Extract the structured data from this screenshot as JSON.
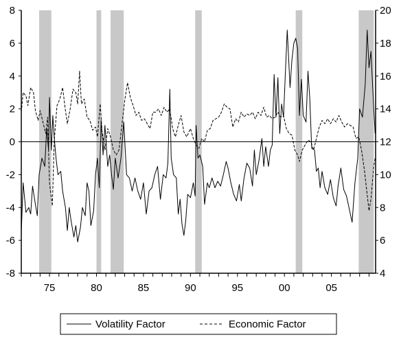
{
  "chart_data": {
    "type": "line",
    "title": "",
    "xlabel": "",
    "ylabel_left": "",
    "ylabel_right": "",
    "xlim": [
      1972,
      2009.7
    ],
    "ylim_left": [
      -8,
      8
    ],
    "ylim_right": [
      4,
      20
    ],
    "grid": false,
    "legend_placement": "bottom-center",
    "x_ticks": [
      {
        "value": 1975,
        "label": "75"
      },
      {
        "value": 1980,
        "label": "80"
      },
      {
        "value": 1985,
        "label": "85"
      },
      {
        "value": 1990,
        "label": "90"
      },
      {
        "value": 1995,
        "label": "95"
      },
      {
        "value": 2000,
        "label": "00"
      },
      {
        "value": 2005,
        "label": "05"
      }
    ],
    "y_ticks_left": [
      "8",
      "6",
      "4",
      "2",
      "0",
      "-2",
      "-4",
      "-6",
      "-8"
    ],
    "y_ticks_right": [
      "20",
      "18",
      "16",
      "14",
      "12",
      "10",
      "8",
      "6",
      "4"
    ],
    "recessions": [
      [
        1973.9,
        1975.2
      ],
      [
        1980.0,
        1980.5
      ],
      [
        1981.5,
        1982.9
      ],
      [
        1990.5,
        1991.2
      ],
      [
        2001.2,
        2001.9
      ],
      [
        2007.9,
        2009.5
      ]
    ],
    "zero_line_left": 0,
    "series": [
      {
        "name": "Volatility Factor",
        "axis": "left",
        "style": "solid",
        "x": [
          1972.0,
          1972.2,
          1972.5,
          1972.8,
          1973.0,
          1973.2,
          1973.5,
          1973.7,
          1973.9,
          1974.2,
          1974.5,
          1974.7,
          1974.9,
          1975.0,
          1975.2,
          1975.35,
          1975.5,
          1975.7,
          1975.9,
          1976.2,
          1976.4,
          1976.7,
          1976.9,
          1977.1,
          1977.3,
          1977.6,
          1977.8,
          1978.0,
          1978.3,
          1978.5,
          1978.8,
          1979.0,
          1979.2,
          1979.4,
          1979.7,
          1979.9,
          1980.1,
          1980.3,
          1980.5,
          1980.7,
          1980.9,
          1981.2,
          1981.4,
          1981.6,
          1981.8,
          1982.0,
          1982.3,
          1982.6,
          1982.9,
          1983.2,
          1983.5,
          1983.8,
          1984.1,
          1984.4,
          1984.7,
          1985.0,
          1985.3,
          1985.6,
          1985.9,
          1986.2,
          1986.5,
          1986.8,
          1987.1,
          1987.4,
          1987.6,
          1987.8,
          1987.95,
          1988.2,
          1988.5,
          1988.7,
          1988.9,
          1989.1,
          1989.3,
          1989.5,
          1989.7,
          1990.0,
          1990.3,
          1990.5,
          1990.6,
          1990.8,
          1991.0,
          1991.3,
          1991.5,
          1991.8,
          1992.0,
          1992.3,
          1992.6,
          1992.9,
          1993.2,
          1993.5,
          1993.8,
          1994.0,
          1994.3,
          1994.6,
          1994.9,
          1995.2,
          1995.4,
          1995.7,
          1996.0,
          1996.3,
          1996.6,
          1996.8,
          1997.0,
          1997.3,
          1997.6,
          1997.8,
          1998.0,
          1998.3,
          1998.5,
          1998.7,
          1998.9,
          1999.1,
          1999.3,
          1999.5,
          1999.7,
          1999.9,
          2000.1,
          2000.3,
          2000.6,
          2000.8,
          2001.0,
          2001.2,
          2001.4,
          2001.6,
          2001.8,
          2002.0,
          2002.3,
          2002.5,
          2002.7,
          2002.9,
          2003.2,
          2003.4,
          2003.6,
          2003.8,
          2004.0,
          2004.3,
          2004.6,
          2004.9,
          2005.2,
          2005.5,
          2005.7,
          2006.0,
          2006.3,
          2006.6,
          2006.9,
          2007.2,
          2007.5,
          2007.8,
          2008.0,
          2008.3,
          2008.6,
          2008.8,
          2009.0,
          2009.2,
          2009.5,
          2009.65
        ],
        "y": [
          -5.5,
          -2.5,
          -4.3,
          -4.0,
          -4.4,
          -2.7,
          -3.8,
          -4.5,
          -2.0,
          -1.0,
          -1.5,
          0.8,
          -0.5,
          2.7,
          -0.5,
          1.6,
          0.3,
          -1.0,
          -2.0,
          -1.8,
          -3.0,
          -4.0,
          -5.4,
          -4.0,
          -4.8,
          -5.8,
          -5.1,
          -6.1,
          -5.2,
          -4.0,
          -4.5,
          -2.5,
          -3.0,
          -5.1,
          -4.2,
          -2.0,
          -1.0,
          -2.8,
          1.3,
          -0.8,
          1.0,
          -1.5,
          -0.8,
          -2.0,
          -2.9,
          -1.0,
          -2.2,
          -1.0,
          1.2,
          -2.0,
          -2.2,
          -3.0,
          -2.2,
          -3.0,
          -3.5,
          -2.5,
          -4.4,
          -3.0,
          -2.8,
          -2.0,
          -1.5,
          -3.5,
          -2.0,
          -2.2,
          -1.3,
          3.2,
          -1.0,
          -2.0,
          -2.2,
          -4.4,
          -3.5,
          -5.0,
          -5.7,
          -4.8,
          -3.2,
          -3.4,
          -2.5,
          -3.3,
          1.0,
          -1.0,
          -0.8,
          -1.5,
          -3.8,
          -2.5,
          -2.8,
          -2.2,
          -2.8,
          -2.4,
          -2.7,
          -2.0,
          -1.2,
          -1.6,
          -2.5,
          -3.2,
          -3.6,
          -2.6,
          -3.6,
          -2.2,
          -1.3,
          -1.6,
          -2.7,
          -0.5,
          -2.0,
          -1.1,
          0.2,
          -1.5,
          -0.3,
          -1.5,
          -0.5,
          -0.2,
          4.1,
          1.5,
          3.9,
          0.5,
          2.3,
          1.5,
          4.2,
          6.8,
          3.3,
          5.0,
          6.0,
          6.3,
          5.7,
          1.6,
          3.8,
          1.6,
          1.2,
          4.3,
          2.6,
          -0.4,
          -0.5,
          -1.8,
          -1.6,
          -2.8,
          -1.8,
          -2.8,
          -3.2,
          -2.3,
          -3.4,
          -3.9,
          -2.7,
          -1.6,
          -2.9,
          -3.3,
          -4.1,
          -4.9,
          -2.5,
          -1.0,
          2.0,
          1.5,
          3.5,
          6.8,
          4.5,
          5.5,
          2.0,
          0.5
        ]
      },
      {
        "name": "Economic Factor",
        "axis": "right",
        "style": "dashed",
        "x": [
          1972.0,
          1972.2,
          1972.5,
          1972.7,
          1973.0,
          1973.3,
          1973.5,
          1973.8,
          1974.0,
          1974.3,
          1974.6,
          1974.8,
          1975.0,
          1975.3,
          1975.5,
          1975.8,
          1976.1,
          1976.4,
          1976.7,
          1976.9,
          1977.2,
          1977.5,
          1977.8,
          1978.0,
          1978.2,
          1978.4,
          1978.7,
          1979.0,
          1979.3,
          1979.6,
          1979.9,
          1980.1,
          1980.4,
          1980.6,
          1980.9,
          1981.2,
          1981.5,
          1981.8,
          1982.1,
          1982.4,
          1982.7,
          1983.0,
          1983.3,
          1983.6,
          1983.9,
          1984.2,
          1984.5,
          1984.8,
          1985.1,
          1985.4,
          1985.7,
          1986.0,
          1986.3,
          1986.6,
          1986.9,
          1987.2,
          1987.5,
          1987.8,
          1988.1,
          1988.4,
          1988.7,
          1989.0,
          1989.3,
          1989.6,
          1990.0,
          1990.3,
          1990.6,
          1990.9,
          1991.2,
          1991.5,
          1991.8,
          1992.1,
          1992.4,
          1992.7,
          1993.0,
          1993.3,
          1993.6,
          1993.9,
          1994.2,
          1994.5,
          1994.8,
          1995.1,
          1995.4,
          1995.7,
          1996.0,
          1996.3,
          1996.6,
          1996.9,
          1997.2,
          1997.5,
          1997.8,
          1998.1,
          1998.4,
          1998.7,
          1999.0,
          1999.3,
          1999.6,
          1999.9,
          2000.2,
          2000.5,
          2000.8,
          2001.1,
          2001.4,
          2001.6,
          2001.9,
          2002.2,
          2002.5,
          2002.8,
          2003.1,
          2003.4,
          2003.7,
          2004.0,
          2004.3,
          2004.6,
          2004.9,
          2005.2,
          2005.5,
          2005.8,
          2006.1,
          2006.4,
          2006.7,
          2007.0,
          2007.3,
          2007.6,
          2007.9,
          2008.2,
          2008.5,
          2008.8,
          2009.0,
          2009.2,
          2009.5,
          2009.65
        ],
        "y": [
          13.8,
          15.0,
          14.8,
          14.2,
          15.3,
          15.0,
          13.9,
          13.3,
          13.9,
          13.2,
          12.5,
          13.5,
          9.5,
          8.1,
          12.0,
          14.2,
          14.6,
          15.3,
          13.9,
          13.1,
          14.0,
          15.2,
          15.0,
          14.3,
          16.3,
          14.3,
          14.6,
          13.5,
          13.3,
          12.7,
          12.9,
          12.3,
          14.3,
          12.6,
          11.5,
          12.8,
          12.3,
          11.5,
          11.2,
          11.5,
          13.0,
          14.5,
          15.6,
          14.7,
          14.2,
          13.6,
          13.8,
          13.3,
          13.4,
          13.1,
          12.8,
          13.8,
          13.8,
          14.0,
          13.6,
          14.1,
          13.8,
          14.0,
          12.8,
          12.3,
          13.0,
          13.6,
          12.6,
          12.3,
          12.8,
          12.2,
          11.8,
          11.6,
          12.2,
          12.0,
          12.7,
          12.8,
          13.3,
          13.4,
          13.5,
          13.8,
          14.3,
          14.1,
          14.0,
          12.9,
          13.4,
          13.2,
          13.8,
          13.5,
          13.7,
          13.6,
          13.8,
          13.4,
          13.8,
          13.6,
          14.1,
          13.5,
          13.6,
          13.4,
          13.5,
          13.8,
          13.5,
          13.6,
          12.8,
          12.5,
          12.4,
          11.5,
          11.2,
          10.8,
          11.5,
          11.8,
          12.1,
          12.0,
          11.5,
          12.2,
          12.9,
          13.3,
          13.1,
          13.4,
          13.1,
          13.4,
          13.2,
          13.6,
          13.2,
          12.9,
          13.1,
          13.0,
          12.9,
          12.2,
          12.3,
          11.5,
          10.3,
          8.8,
          7.8,
          8.5,
          10.5,
          11.0
        ]
      }
    ]
  },
  "legend": {
    "items": [
      {
        "label": "Volatility Factor",
        "style": "solid"
      },
      {
        "label": "Economic Factor",
        "style": "dashed"
      }
    ]
  },
  "colors": {
    "line": "#000000",
    "recession": "#c8c8c8"
  }
}
